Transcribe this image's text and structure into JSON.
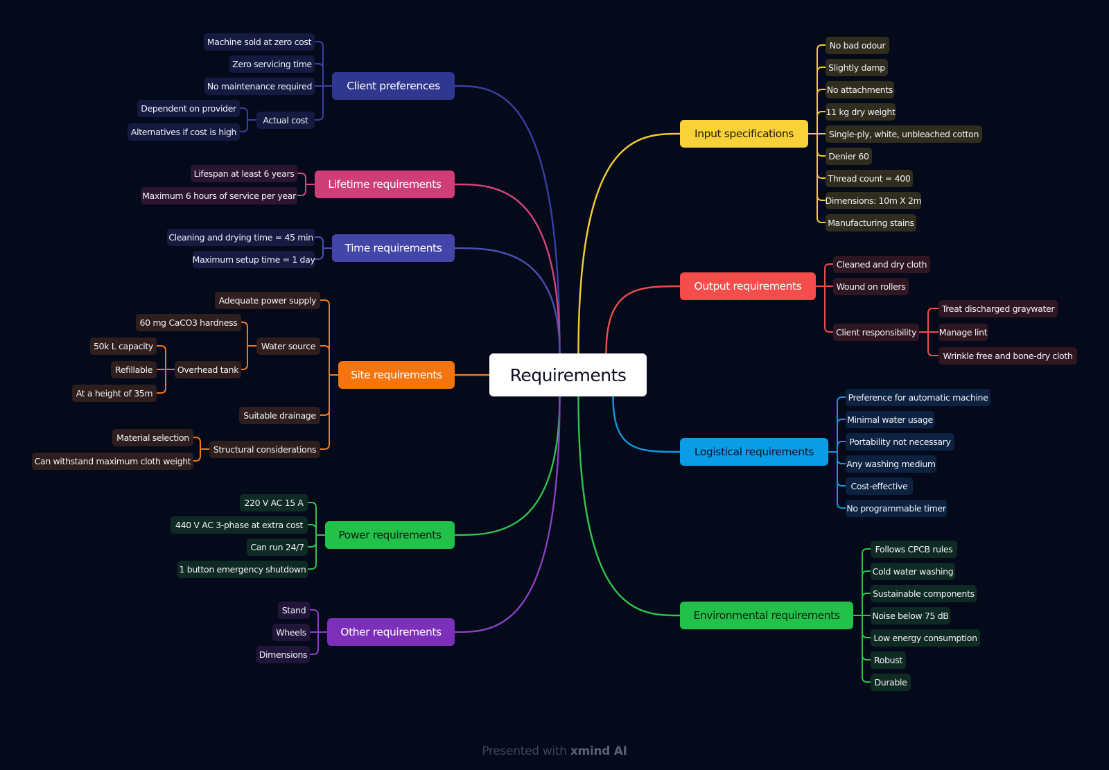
{
  "root": {
    "label": "Requirements"
  },
  "branches": {
    "client": {
      "label": "Client preferences",
      "color": "#3a3fa6",
      "bg": "#30378f",
      "text": "#ffffff",
      "leafbg": "#151a40",
      "children": {
        "c0": "Machine sold at zero cost",
        "c1": "Zero servicing time",
        "c2": "No maintenance required",
        "c3": "Actual cost",
        "c3a": "Dependent on provider",
        "c3b": "Alternatives if cost is high"
      }
    },
    "lifetime": {
      "label": "Lifetime requirements",
      "color": "#d6447a",
      "bg": "#cf3e77",
      "text": "#ffffff",
      "leafbg": "#2b1530",
      "children": {
        "c0": "Lifespan at least 6 years",
        "c1": "Maximum 6 hours of service per year"
      }
    },
    "time": {
      "label": "Time requirements",
      "color": "#4a4fb0",
      "bg": "#4346a8",
      "text": "#ffffff",
      "leafbg": "#171b42",
      "children": {
        "c0": "Cleaning and drying time = 45 min",
        "c1": "Maximum setup time = 1 day"
      }
    },
    "site": {
      "label": "Site requirements",
      "color": "#f07a1a",
      "bg": "#f4740e",
      "text": "#ffffff",
      "leafbg": "#2f1e1e",
      "children": {
        "c0": "Adequate power supply",
        "c1": "Water source",
        "c1a": "60 mg CaCO3 hardness",
        "c1b": "Overhead tank",
        "c1b1": "50k L capacity",
        "c1b2": "Refillable",
        "c1b3": "At a height of 35m",
        "c2": "Suitable drainage",
        "c3": "Structural considerations",
        "c3a": "Material selection",
        "c3b": "Can withstand maximum cloth weight"
      }
    },
    "power": {
      "label": "Power requirements",
      "color": "#2fc24c",
      "bg": "#22c24a",
      "text": "#0a1f10",
      "leafbg": "#0f2a22",
      "children": {
        "c0": "220 V AC 15 A",
        "c1": "440 V AC 3-phase at extra cost",
        "c2": "Can run 24/7",
        "c3": "1 button emergency shutdown"
      }
    },
    "other": {
      "label": "Other requirements",
      "color": "#8b3fc4",
      "bg": "#7c2fb8",
      "text": "#ffffff",
      "leafbg": "#22153a",
      "children": {
        "c0": "Stand",
        "c1": "Wheels",
        "c2": "Dimensions"
      }
    },
    "input": {
      "label": "Input specifications",
      "color": "#f2cc33",
      "bg": "#f8d238",
      "text": "#1e1804",
      "leafbg": "#302c1e",
      "children": {
        "c0": "No bad odour",
        "c1": "Slightly damp",
        "c2": "No attachments",
        "c3": "11 kg dry weight",
        "c4": "Single-ply, white, unbleached cotton",
        "c5": "Denier 60",
        "c6": "Thread count = 400",
        "c7": "Dimensions: 10m X 2m",
        "c8": "Manufacturing stains"
      }
    },
    "output": {
      "label": "Output requirements",
      "color": "#f04d4d",
      "bg": "#f54c4c",
      "text": "#ffffff",
      "leafbg": "#2f1722",
      "children": {
        "c0": "Cleaned and dry cloth",
        "c1": "Wound on rollers",
        "c2": "Client responsibility",
        "c2a": "Treat discharged graywater",
        "c2b": "Manage lint",
        "c2c": "Wrinkle free and bone-dry cloth"
      }
    },
    "logistic": {
      "label": "Logistical requirements",
      "color": "#0d9be0",
      "bg": "#0a9de6",
      "text": "#061526",
      "leafbg": "#0c2240",
      "children": {
        "c0": "Preference for automatic machine",
        "c1": "Minimal water usage",
        "c2": "Portability not necessary",
        "c3": "Any washing medium",
        "c4": "Cost-effective",
        "c5": "No programmable timer"
      }
    },
    "env": {
      "label": "Environmental requirements",
      "color": "#2fc24c",
      "bg": "#22c24a",
      "text": "#0a1f10",
      "leafbg": "#0f2a22",
      "children": {
        "c0": "Follows CPCB rules",
        "c1": "Cold water washing",
        "c2": "Sustainable components",
        "c3": "Noise below 75 dB",
        "c4": "Low energy consumption",
        "c5": "Robust",
        "c6": "Durable"
      }
    }
  },
  "footer": {
    "prefix": "Presented with",
    "brand": "xmind AI"
  }
}
